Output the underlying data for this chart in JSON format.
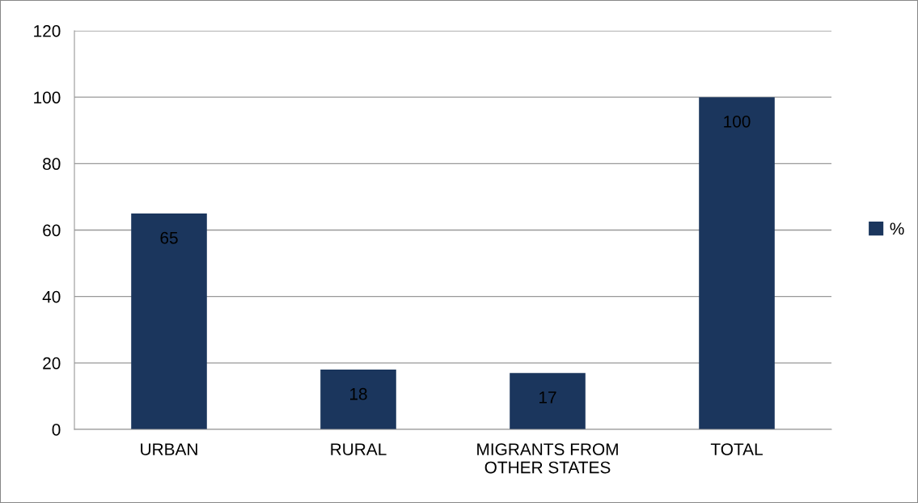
{
  "chart_data": {
    "type": "bar",
    "categories": [
      "URBAN",
      "RURAL",
      "MIGRANTS FROM\nOTHER STATES",
      "TOTAL"
    ],
    "series": [
      {
        "name": "%",
        "color": "#1b365d",
        "values": [
          65,
          18,
          17,
          100
        ]
      }
    ],
    "ylim": [
      0,
      120
    ],
    "yticks": [
      0,
      20,
      40,
      60,
      80,
      100,
      120
    ],
    "grid": "y",
    "legend": "right",
    "data_labels": true
  }
}
